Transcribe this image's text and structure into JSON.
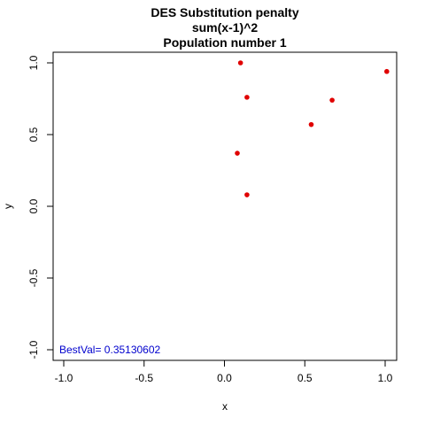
{
  "chart_data": {
    "type": "scatter",
    "title": [
      "DES Substitution penalty",
      "sum(x-1)^2",
      "Population number 1"
    ],
    "xlabel": "x",
    "ylabel": "y",
    "xlim": [
      -1.0,
      1.0
    ],
    "ylim": [
      -1.0,
      1.0
    ],
    "x_ticks": [
      -1.0,
      -0.5,
      0.0,
      0.5,
      1.0
    ],
    "x_tick_labels": [
      "-1.0",
      "-0.5",
      "0.0",
      "0.5",
      "1.0"
    ],
    "y_ticks": [
      -1.0,
      -0.5,
      0.0,
      0.5,
      1.0
    ],
    "y_tick_labels": [
      "-1.0",
      "-0.5",
      "0.0",
      "0.5",
      "1.0"
    ],
    "grid": false,
    "point_color": "#e00000",
    "points": [
      {
        "x": 0.1,
        "y": 1.0
      },
      {
        "x": 0.14,
        "y": 0.76
      },
      {
        "x": 0.08,
        "y": 0.37
      },
      {
        "x": 0.14,
        "y": 0.08
      },
      {
        "x": 0.54,
        "y": 0.57
      },
      {
        "x": 0.67,
        "y": 0.74
      },
      {
        "x": 1.01,
        "y": 0.94
      }
    ],
    "annotation": {
      "text": "BestVal= 0.35130602",
      "color": "#0000cd",
      "position": "bottom-left"
    }
  }
}
